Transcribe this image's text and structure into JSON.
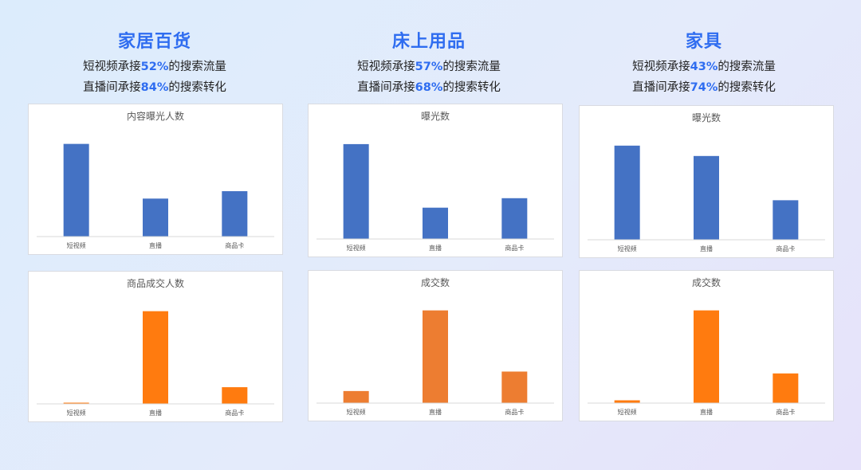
{
  "columns": [
    {
      "title": "家居百货",
      "line1": {
        "pre": "短视频承接",
        "pct": "52%",
        "post": "的搜索流量"
      },
      "line2": {
        "pre": "直播间承接",
        "pct": "84%",
        "post": "的搜索转化"
      }
    },
    {
      "title": "床上用品",
      "line1": {
        "pre": "短视频承接",
        "pct": "57%",
        "post": "的搜索流量"
      },
      "line2": {
        "pre": "直播间承接",
        "pct": "68%",
        "post": "的搜索转化"
      }
    },
    {
      "title": "家具",
      "line1": {
        "pre": "短视频承接",
        "pct": "43%",
        "post": "的搜索流量"
      },
      "line2": {
        "pre": "直播间承接",
        "pct": "74%",
        "post": "的搜索转化"
      }
    }
  ],
  "chart_data": [
    {
      "type": "bar",
      "title": "内容曝光人数",
      "categories": [
        "短视频",
        "直播",
        "商品卡"
      ],
      "values": [
        100,
        41,
        49
      ],
      "ylim": [
        0,
        110
      ],
      "color": "#4472c4",
      "grid": false
    },
    {
      "type": "bar",
      "title": "曝光数",
      "categories": [
        "短视频",
        "直播",
        "商品卡"
      ],
      "values": [
        100,
        33,
        43
      ],
      "ylim": [
        0,
        110
      ],
      "color": "#4472c4",
      "grid": false
    },
    {
      "type": "bar",
      "title": "曝光数",
      "categories": [
        "短视频",
        "直播",
        "商品卡"
      ],
      "values": [
        100,
        89,
        42
      ],
      "ylim": [
        0,
        110
      ],
      "color": "#4472c4",
      "grid": false
    },
    {
      "type": "bar",
      "title": "商品成交人数",
      "categories": [
        "短视频",
        "直播",
        "商品卡"
      ],
      "values": [
        1,
        100,
        18
      ],
      "ylim": [
        0,
        110
      ],
      "color": "#ff7b0f",
      "grid": false
    },
    {
      "type": "bar",
      "title": "成交数",
      "categories": [
        "短视频",
        "直播",
        "商品卡"
      ],
      "values": [
        13,
        100,
        34
      ],
      "ylim": [
        0,
        110
      ],
      "color": "#ed7d31",
      "grid": false
    },
    {
      "type": "bar",
      "title": "成交数",
      "categories": [
        "短视频",
        "直播",
        "商品卡"
      ],
      "values": [
        3,
        100,
        32
      ],
      "ylim": [
        0,
        110
      ],
      "color": "#ff7b0f",
      "grid": false
    }
  ]
}
